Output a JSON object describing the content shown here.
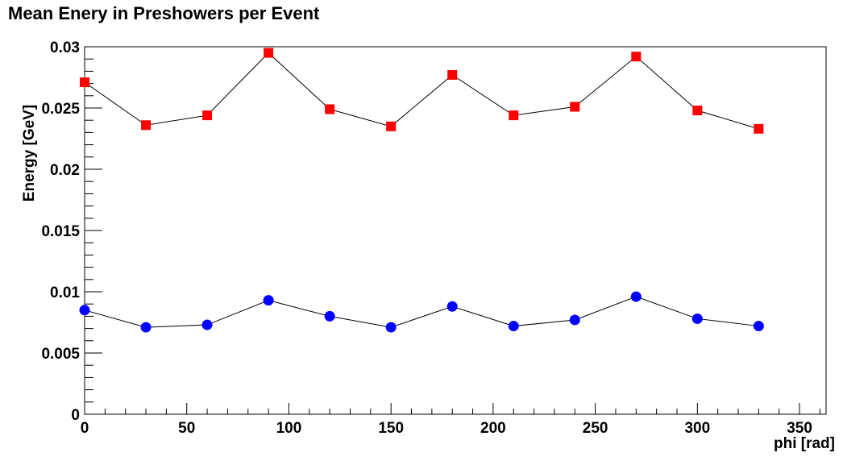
{
  "chart_data": {
    "type": "line",
    "title": "Mean Enery in Preshowers per Event",
    "xlabel": "phi [rad]",
    "ylabel": "Energy [GeV]",
    "xlim": [
      0,
      363
    ],
    "ylim": [
      0,
      0.03
    ],
    "xticks": [
      0,
      50,
      100,
      150,
      200,
      250,
      300,
      350
    ],
    "xtick_labels": [
      "0",
      "50",
      "100",
      "150",
      "200",
      "250",
      "300",
      "350"
    ],
    "yticks": [
      0,
      0.005,
      0.01,
      0.015,
      0.02,
      0.025,
      0.03
    ],
    "ytick_labels": [
      "0",
      "0.005",
      "0.01",
      "0.015",
      "0.02",
      "0.025",
      "0.03"
    ],
    "grid": false,
    "x": [
      0,
      30,
      60,
      90,
      120,
      150,
      180,
      210,
      240,
      270,
      300,
      330
    ],
    "series": [
      {
        "marker": "square",
        "color": "#ff0000",
        "values": [
          0.0271,
          0.0236,
          0.0244,
          0.0295,
          0.0249,
          0.0235,
          0.0277,
          0.0244,
          0.0251,
          0.0292,
          0.0248,
          0.0233
        ]
      },
      {
        "marker": "circle",
        "color": "#0000ff",
        "values": [
          0.0085,
          0.0071,
          0.0073,
          0.0093,
          0.008,
          0.0071,
          0.0088,
          0.0072,
          0.0077,
          0.0096,
          0.0078,
          0.0072
        ]
      }
    ]
  }
}
